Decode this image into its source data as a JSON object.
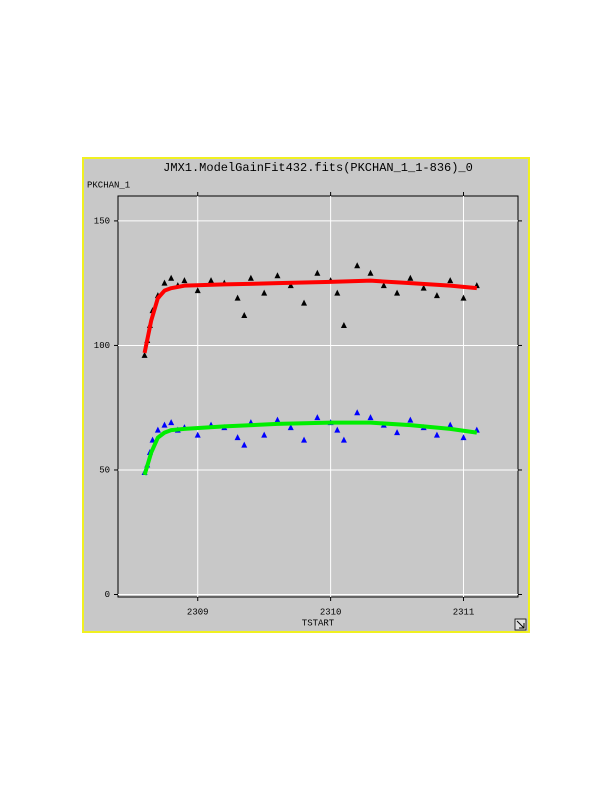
{
  "chart_data": {
    "type": "scatter",
    "title": "JMX1.ModelGainFit432.fits(PKCHAN_1_1-836)_0",
    "y_label": "PKCHAN_1",
    "x_label": "TSTART",
    "xlim": [
      2308.4,
      2311.41
    ],
    "ylim": [
      -1,
      160
    ],
    "xticks": [
      2309,
      2310,
      2311
    ],
    "yticks": [
      0,
      50,
      100,
      150
    ],
    "grid": true,
    "series": [
      {
        "color": "#000000",
        "mode": "markers",
        "x": [
          2308.6,
          2308.62,
          2308.64,
          2308.66,
          2308.7,
          2308.75,
          2308.8,
          2308.85,
          2308.9,
          2309.0,
          2309.1,
          2309.2,
          2309.3,
          2309.35,
          2309.4,
          2309.5,
          2309.6,
          2309.7,
          2309.8,
          2309.9,
          2310.0,
          2310.05,
          2310.1,
          2310.2,
          2310.3,
          2310.4,
          2310.5,
          2310.6,
          2310.7,
          2310.8,
          2310.9,
          2311.0,
          2311.1
        ],
        "values": [
          96,
          102,
          108,
          114,
          120,
          125,
          127,
          124,
          126,
          122,
          126,
          125,
          119,
          112,
          127,
          121,
          128,
          124,
          117,
          129,
          126,
          121,
          108,
          132,
          129,
          124,
          121,
          127,
          123,
          120,
          126,
          119,
          124
        ]
      },
      {
        "color": "#ff0000",
        "mode": "lines",
        "x": [
          2308.6,
          2308.65,
          2308.7,
          2308.75,
          2308.8,
          2308.9,
          2309.2,
          2309.6,
          2310.0,
          2310.3,
          2310.6,
          2310.9,
          2311.1
        ],
        "values": [
          97,
          110,
          119,
          122,
          123,
          124,
          124.5,
          125,
          125.5,
          126,
          125,
          124,
          123
        ]
      },
      {
        "color": "#0000ff",
        "mode": "markers",
        "x": [
          2308.6,
          2308.62,
          2308.64,
          2308.66,
          2308.7,
          2308.75,
          2308.8,
          2308.85,
          2308.9,
          2309.0,
          2309.1,
          2309.2,
          2309.3,
          2309.35,
          2309.4,
          2309.5,
          2309.6,
          2309.7,
          2309.8,
          2309.9,
          2310.0,
          2310.05,
          2310.1,
          2310.2,
          2310.3,
          2310.4,
          2310.5,
          2310.6,
          2310.7,
          2310.8,
          2310.9,
          2311.0,
          2311.1
        ],
        "values": [
          49,
          52,
          57,
          62,
          66,
          68,
          69,
          66,
          67,
          64,
          68,
          67,
          63,
          60,
          69,
          64,
          70,
          67,
          62,
          71,
          69,
          66,
          62,
          73,
          71,
          68,
          65,
          70,
          67,
          64,
          68,
          63,
          66
        ]
      },
      {
        "color": "#00ee00",
        "mode": "lines",
        "x": [
          2308.6,
          2308.65,
          2308.7,
          2308.75,
          2308.8,
          2308.9,
          2309.2,
          2309.6,
          2310.0,
          2310.3,
          2310.6,
          2310.9,
          2311.1
        ],
        "values": [
          48,
          57,
          63,
          65,
          66,
          66.5,
          67.5,
          68.5,
          69,
          69,
          68,
          66.5,
          65
        ]
      }
    ]
  }
}
